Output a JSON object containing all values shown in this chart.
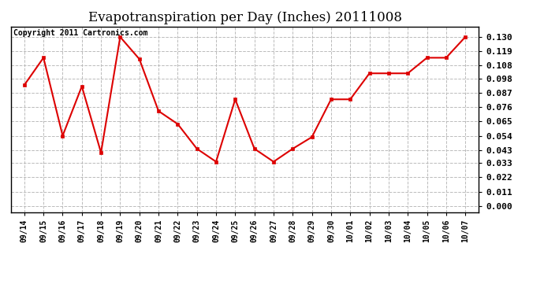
{
  "title": "Evapotranspiration per Day (Inches) 20111008",
  "copyright_text": "Copyright 2011 Cartronics.com",
  "x_labels": [
    "09/14",
    "09/15",
    "09/16",
    "09/17",
    "09/18",
    "09/19",
    "09/20",
    "09/21",
    "09/22",
    "09/23",
    "09/24",
    "09/25",
    "09/26",
    "09/27",
    "09/28",
    "09/29",
    "09/30",
    "10/01",
    "10/02",
    "10/03",
    "10/04",
    "10/05",
    "10/06",
    "10/07"
  ],
  "y_values": [
    0.093,
    0.114,
    0.054,
    0.092,
    0.041,
    0.13,
    0.113,
    0.073,
    0.063,
    0.044,
    0.034,
    0.082,
    0.044,
    0.034,
    0.044,
    0.053,
    0.082,
    0.082,
    0.102,
    0.102,
    0.102,
    0.114,
    0.114,
    0.13
  ],
  "line_color": "#dd0000",
  "marker_color": "#dd0000",
  "marker_style": "s",
  "marker_size": 3.5,
  "line_width": 1.5,
  "y_ticks": [
    0.0,
    0.011,
    0.022,
    0.033,
    0.043,
    0.054,
    0.065,
    0.076,
    0.087,
    0.098,
    0.108,
    0.119,
    0.13
  ],
  "ylim": [
    -0.005,
    0.138
  ],
  "grid_color": "#bbbbbb",
  "background_color": "#ffffff",
  "title_fontsize": 12,
  "copyright_fontsize": 7,
  "tick_fontsize": 8,
  "xtick_fontsize": 7
}
